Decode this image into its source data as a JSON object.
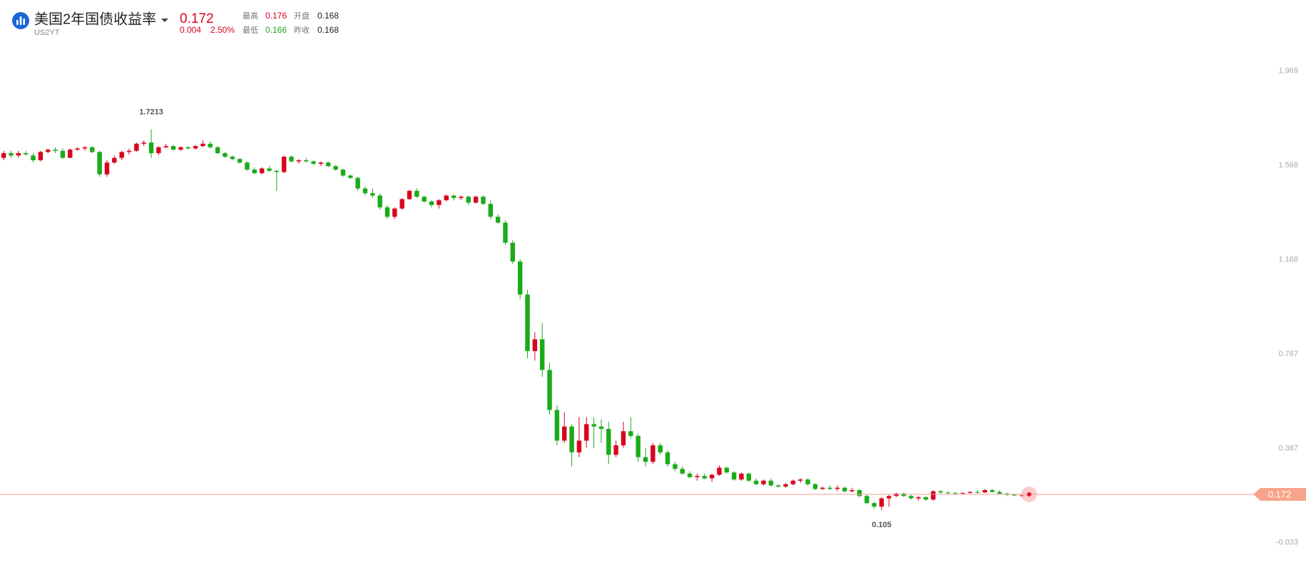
{
  "chart_data": {
    "type": "candlestick",
    "title": "美国2年国债收益率",
    "symbol": "US2YT",
    "labels": {
      "high": "最高",
      "low": "最低",
      "open": "开盘",
      "prev_close": "昨收"
    },
    "quote": {
      "change": 0.004,
      "change_percent": "2.50%",
      "prev_close": 0.168
    },
    "up_color": "#d9041e",
    "down_color": "#1aab1a",
    "ylim": [
      -0.2,
      2.27
    ],
    "yticks": [
      1.969,
      1.568,
      1.168,
      0.767,
      0.367,
      -0.033
    ],
    "ohlc": [
      [
        1.6,
        1.63,
        1.59,
        1.62
      ],
      [
        1.62,
        1.63,
        1.6,
        1.61
      ],
      [
        1.61,
        1.63,
        1.6,
        1.62
      ],
      [
        1.62,
        1.63,
        1.61,
        1.615
      ],
      [
        1.61,
        1.62,
        1.58,
        1.59
      ],
      [
        1.59,
        1.63,
        1.585,
        1.625
      ],
      [
        1.625,
        1.64,
        1.62,
        1.635
      ],
      [
        1.635,
        1.645,
        1.62,
        1.63
      ],
      [
        1.63,
        1.64,
        1.595,
        1.6
      ],
      [
        1.6,
        1.64,
        1.6,
        1.635
      ],
      [
        1.635,
        1.645,
        1.63,
        1.64
      ],
      [
        1.64,
        1.65,
        1.63,
        1.645
      ],
      [
        1.645,
        1.65,
        1.62,
        1.625
      ],
      [
        1.625,
        1.63,
        1.52,
        1.53
      ],
      [
        1.53,
        1.59,
        1.52,
        1.58
      ],
      [
        1.58,
        1.61,
        1.575,
        1.6
      ],
      [
        1.6,
        1.63,
        1.59,
        1.625
      ],
      [
        1.625,
        1.64,
        1.615,
        1.63
      ],
      [
        1.63,
        1.665,
        1.625,
        1.66
      ],
      [
        1.66,
        1.675,
        1.65,
        1.665
      ],
      [
        1.665,
        1.7213,
        1.6,
        1.62
      ],
      [
        1.62,
        1.65,
        1.61,
        1.645
      ],
      [
        1.645,
        1.66,
        1.64,
        1.65
      ],
      [
        1.65,
        1.655,
        1.63,
        1.635
      ],
      [
        1.635,
        1.65,
        1.63,
        1.645
      ],
      [
        1.645,
        1.65,
        1.635,
        1.64
      ],
      [
        1.64,
        1.655,
        1.635,
        1.65
      ],
      [
        1.65,
        1.675,
        1.645,
        1.66
      ],
      [
        1.66,
        1.67,
        1.64,
        1.645
      ],
      [
        1.645,
        1.65,
        1.615,
        1.62
      ],
      [
        1.62,
        1.625,
        1.6,
        1.605
      ],
      [
        1.605,
        1.61,
        1.59,
        1.595
      ],
      [
        1.595,
        1.6,
        1.575,
        1.58
      ],
      [
        1.58,
        1.585,
        1.545,
        1.55
      ],
      [
        1.55,
        1.56,
        1.53,
        1.535
      ],
      [
        1.535,
        1.56,
        1.53,
        1.555
      ],
      [
        1.555,
        1.565,
        1.54,
        1.545
      ],
      [
        1.545,
        1.55,
        1.46,
        1.54
      ],
      [
        1.54,
        1.61,
        1.535,
        1.605
      ],
      [
        1.605,
        1.61,
        1.58,
        1.585
      ],
      [
        1.585,
        1.595,
        1.575,
        1.59
      ],
      [
        1.59,
        1.6,
        1.58,
        1.585
      ],
      [
        1.585,
        1.59,
        1.57,
        1.575
      ],
      [
        1.575,
        1.585,
        1.565,
        1.58
      ],
      [
        1.58,
        1.585,
        1.56,
        1.565
      ],
      [
        1.565,
        1.57,
        1.545,
        1.55
      ],
      [
        1.55,
        1.555,
        1.52,
        1.525
      ],
      [
        1.525,
        1.53,
        1.51,
        1.515
      ],
      [
        1.515,
        1.52,
        1.46,
        1.47
      ],
      [
        1.47,
        1.48,
        1.44,
        1.45
      ],
      [
        1.45,
        1.47,
        1.43,
        1.44
      ],
      [
        1.44,
        1.45,
        1.38,
        1.39
      ],
      [
        1.39,
        1.4,
        1.34,
        1.35
      ],
      [
        1.35,
        1.39,
        1.34,
        1.385
      ],
      [
        1.385,
        1.43,
        1.38,
        1.425
      ],
      [
        1.425,
        1.465,
        1.42,
        1.46
      ],
      [
        1.46,
        1.47,
        1.43,
        1.435
      ],
      [
        1.435,
        1.44,
        1.41,
        1.415
      ],
      [
        1.415,
        1.42,
        1.39,
        1.4
      ],
      [
        1.4,
        1.425,
        1.385,
        1.42
      ],
      [
        1.42,
        1.445,
        1.415,
        1.44
      ],
      [
        1.44,
        1.445,
        1.42,
        1.43
      ],
      [
        1.43,
        1.44,
        1.42,
        1.435
      ],
      [
        1.435,
        1.44,
        1.4,
        1.41
      ],
      [
        1.41,
        1.44,
        1.405,
        1.435
      ],
      [
        1.435,
        1.44,
        1.4,
        1.405
      ],
      [
        1.405,
        1.42,
        1.34,
        1.35
      ],
      [
        1.35,
        1.36,
        1.32,
        1.325
      ],
      [
        1.325,
        1.335,
        1.23,
        1.24
      ],
      [
        1.24,
        1.25,
        1.15,
        1.16
      ],
      [
        1.16,
        1.17,
        1.0,
        1.02
      ],
      [
        1.02,
        1.04,
        0.75,
        0.78
      ],
      [
        0.78,
        0.86,
        0.74,
        0.83
      ],
      [
        0.83,
        0.9,
        0.67,
        0.7
      ],
      [
        0.7,
        0.73,
        0.51,
        0.53
      ],
      [
        0.53,
        0.55,
        0.38,
        0.4
      ],
      [
        0.4,
        0.52,
        0.39,
        0.46
      ],
      [
        0.46,
        0.47,
        0.29,
        0.35
      ],
      [
        0.35,
        0.5,
        0.33,
        0.4
      ],
      [
        0.4,
        0.5,
        0.37,
        0.47
      ],
      [
        0.47,
        0.5,
        0.37,
        0.46
      ],
      [
        0.46,
        0.49,
        0.39,
        0.45
      ],
      [
        0.45,
        0.48,
        0.3,
        0.34
      ],
      [
        0.34,
        0.4,
        0.33,
        0.38
      ],
      [
        0.38,
        0.48,
        0.37,
        0.44
      ],
      [
        0.44,
        0.5,
        0.41,
        0.42
      ],
      [
        0.42,
        0.43,
        0.31,
        0.33
      ],
      [
        0.33,
        0.37,
        0.29,
        0.31
      ],
      [
        0.31,
        0.39,
        0.3,
        0.38
      ],
      [
        0.38,
        0.39,
        0.34,
        0.35
      ],
      [
        0.35,
        0.36,
        0.29,
        0.3
      ],
      [
        0.3,
        0.31,
        0.27,
        0.28
      ],
      [
        0.28,
        0.29,
        0.255,
        0.26
      ],
      [
        0.26,
        0.27,
        0.24,
        0.245
      ],
      [
        0.245,
        0.26,
        0.23,
        0.25
      ],
      [
        0.25,
        0.26,
        0.235,
        0.24
      ],
      [
        0.24,
        0.26,
        0.225,
        0.255
      ],
      [
        0.255,
        0.295,
        0.25,
        0.285
      ],
      [
        0.285,
        0.29,
        0.26,
        0.265
      ],
      [
        0.265,
        0.27,
        0.23,
        0.235
      ],
      [
        0.235,
        0.265,
        0.23,
        0.26
      ],
      [
        0.26,
        0.265,
        0.225,
        0.23
      ],
      [
        0.23,
        0.24,
        0.21,
        0.215
      ],
      [
        0.215,
        0.235,
        0.21,
        0.23
      ],
      [
        0.23,
        0.24,
        0.205,
        0.21
      ],
      [
        0.21,
        0.215,
        0.2,
        0.205
      ],
      [
        0.205,
        0.22,
        0.2,
        0.215
      ],
      [
        0.215,
        0.235,
        0.21,
        0.23
      ],
      [
        0.23,
        0.24,
        0.22,
        0.235
      ],
      [
        0.235,
        0.24,
        0.21,
        0.215
      ],
      [
        0.215,
        0.22,
        0.19,
        0.195
      ],
      [
        0.195,
        0.205,
        0.19,
        0.2
      ],
      [
        0.2,
        0.21,
        0.19,
        0.195
      ],
      [
        0.195,
        0.21,
        0.185,
        0.2
      ],
      [
        0.2,
        0.205,
        0.18,
        0.185
      ],
      [
        0.185,
        0.2,
        0.18,
        0.19
      ],
      [
        0.19,
        0.195,
        0.16,
        0.165
      ],
      [
        0.165,
        0.17,
        0.13,
        0.135
      ],
      [
        0.135,
        0.14,
        0.11,
        0.12
      ],
      [
        0.12,
        0.16,
        0.105,
        0.155
      ],
      [
        0.155,
        0.17,
        0.12,
        0.165
      ],
      [
        0.165,
        0.18,
        0.16,
        0.175
      ],
      [
        0.175,
        0.18,
        0.16,
        0.165
      ],
      [
        0.165,
        0.17,
        0.15,
        0.155
      ],
      [
        0.155,
        0.165,
        0.145,
        0.16
      ],
      [
        0.16,
        0.165,
        0.145,
        0.15
      ],
      [
        0.15,
        0.19,
        0.145,
        0.185
      ],
      [
        0.185,
        0.19,
        0.175,
        0.18
      ],
      [
        0.18,
        0.185,
        0.17,
        0.178
      ],
      [
        0.178,
        0.182,
        0.172,
        0.175
      ],
      [
        0.175,
        0.18,
        0.17,
        0.178
      ],
      [
        0.178,
        0.185,
        0.175,
        0.182
      ],
      [
        0.182,
        0.19,
        0.175,
        0.18
      ],
      [
        0.18,
        0.195,
        0.178,
        0.19
      ],
      [
        0.19,
        0.195,
        0.18,
        0.182
      ],
      [
        0.182,
        0.19,
        0.17,
        0.175
      ],
      [
        0.175,
        0.18,
        0.165,
        0.17
      ],
      [
        0.17,
        0.175,
        0.165,
        0.168
      ],
      [
        0.168,
        0.172,
        0.162,
        0.168
      ],
      [
        0.168,
        0.176,
        0.166,
        0.172
      ]
    ]
  }
}
